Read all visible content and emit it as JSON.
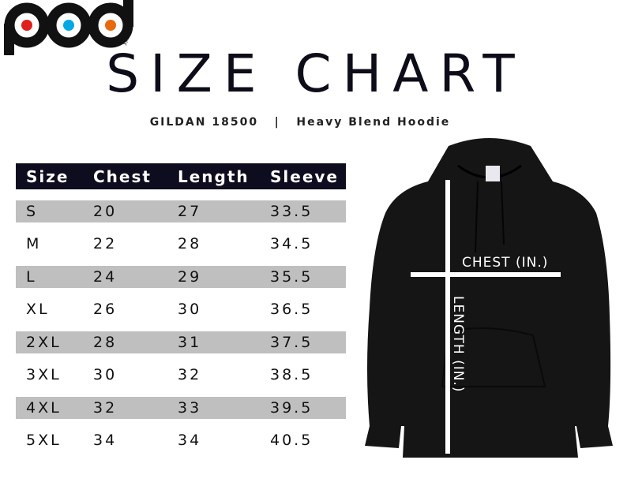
{
  "logo": {
    "text": "pod",
    "tag": "XMAS",
    "dot_colors": [
      "#e0201b",
      "#00a8e6",
      "#e86a0c"
    ]
  },
  "title": "SIZE CHART",
  "subtitle": "GILDAN 18500   |   Heavy Blend Hoodie",
  "table": {
    "headers": [
      "Size",
      "Chest",
      "Length",
      "Sleeve"
    ],
    "rows": [
      [
        "S",
        "20",
        "27",
        "33.5"
      ],
      [
        "M",
        "22",
        "28",
        "34.5"
      ],
      [
        "L",
        "24",
        "29",
        "35.5"
      ],
      [
        "XL",
        "26",
        "30",
        "36.5"
      ],
      [
        "2XL",
        "28",
        "31",
        "37.5"
      ],
      [
        "3XL",
        "30",
        "32",
        "38.5"
      ],
      [
        "4XL",
        "32",
        "33",
        "39.5"
      ],
      [
        "5XL",
        "34",
        "34",
        "40.5"
      ]
    ]
  },
  "hoodie": {
    "chest_label": "CHEST (IN.)",
    "length_label": "LENGTH (IN.)",
    "color": "#151515"
  },
  "colors": {
    "header_bg": "#0d0d1f",
    "stripe": "#bfbfbf"
  }
}
